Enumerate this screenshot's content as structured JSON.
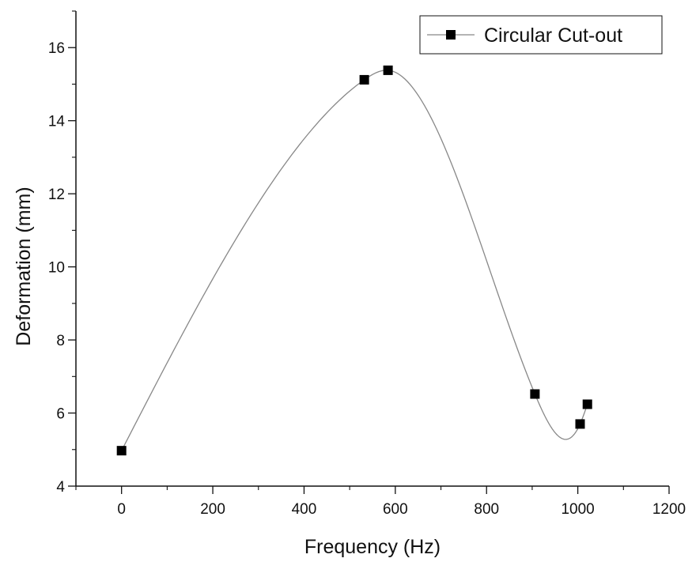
{
  "chart_data": {
    "type": "line",
    "title": "",
    "xlabel": "Frequency (Hz)",
    "ylabel": "Deformation (mm)",
    "xlim": [
      -100,
      1200
    ],
    "ylim": [
      4,
      17
    ],
    "x_ticks": [
      0,
      200,
      400,
      600,
      800,
      1000,
      1200
    ],
    "y_ticks": [
      4,
      6,
      8,
      10,
      12,
      14,
      16
    ],
    "grid": false,
    "legend_position": "top-right",
    "smooth": true,
    "series": [
      {
        "name": "Circular Cut-out",
        "marker": "square",
        "color": "#000000",
        "line_color": "#888888",
        "points": [
          {
            "x": 0,
            "y": 4.97
          },
          {
            "x": 532,
            "y": 15.12
          },
          {
            "x": 584,
            "y": 15.38
          },
          {
            "x": 906,
            "y": 6.52
          },
          {
            "x": 1005,
            "y": 5.7
          },
          {
            "x": 1021,
            "y": 6.24
          }
        ]
      }
    ]
  }
}
